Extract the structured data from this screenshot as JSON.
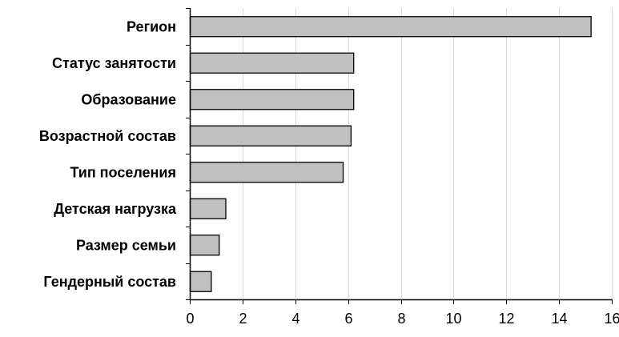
{
  "chart_data": {
    "type": "bar",
    "orientation": "horizontal",
    "categories": [
      "Регион",
      "Статус занятости",
      "Образование",
      "Возрастной состав",
      "Тип поселения",
      "Детская нагрузка",
      "Размер семьи",
      "Гендерный состав"
    ],
    "values": [
      15.2,
      6.2,
      6.2,
      6.1,
      5.8,
      1.35,
      1.1,
      0.8
    ],
    "xlim": [
      0,
      16
    ],
    "x_ticks": [
      0,
      2,
      4,
      6,
      8,
      10,
      12,
      14,
      16
    ],
    "x_tick_labels": [
      "0",
      "2",
      "4",
      "6",
      "8",
      "10",
      "12",
      "14",
      "16"
    ],
    "grid": "vertical",
    "legend": "none",
    "colors": {
      "bar_fill": "#c0c0c0",
      "bar_stroke": "#000000",
      "grid": "#d9d9d9",
      "axis": "#000000"
    }
  }
}
